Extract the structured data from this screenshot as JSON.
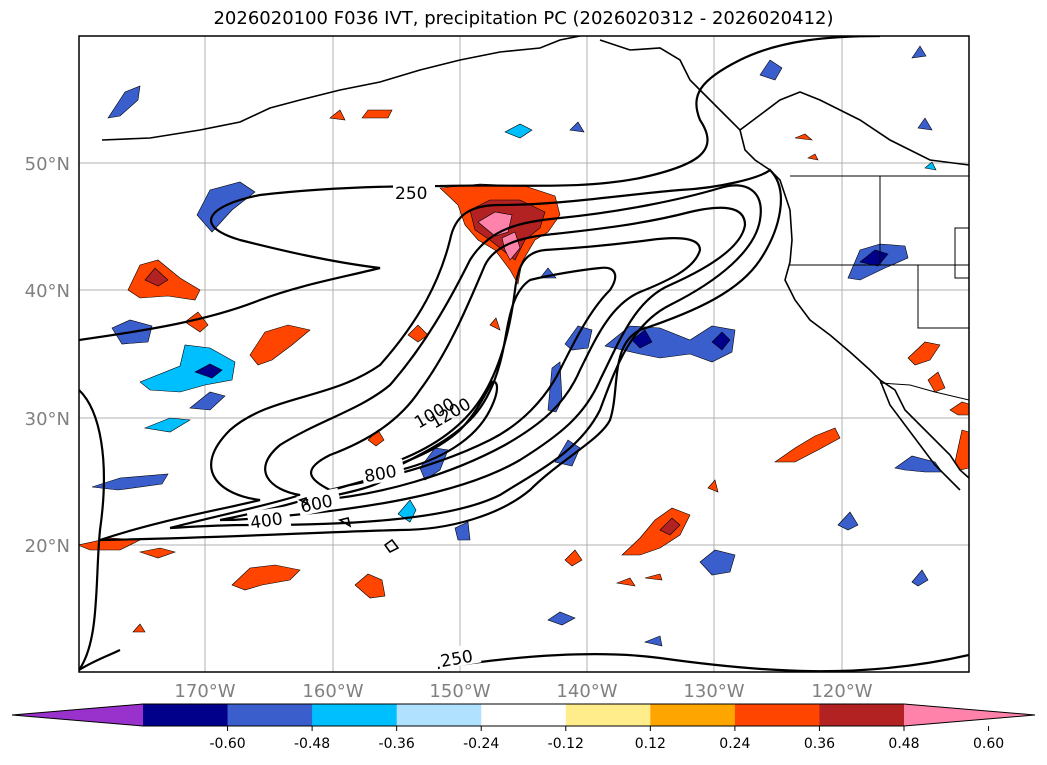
{
  "title": "2026020100 F036 IVT, precipitation PC (2026020312 - 2026020412)",
  "axes": {
    "lon_labels": [
      "170°W",
      "160°W",
      "150°W",
      "140°W",
      "130°W",
      "120°W"
    ],
    "lat_labels": [
      "50°N",
      "40°N",
      "30°N",
      "20°N"
    ],
    "lon_range": [
      -180,
      -110
    ],
    "lat_range": [
      10,
      60
    ],
    "grid": true
  },
  "ivt_contour_labels": [
    "250",
    "250",
    "400",
    "600",
    "800",
    "1000",
    "1200"
  ],
  "colorbar": {
    "ticks": [
      "-0.60",
      "-0.48",
      "-0.36",
      "-0.24",
      "-0.12",
      "0.12",
      "0.24",
      "0.36",
      "0.48",
      "0.60"
    ],
    "colors": [
      "#9932cc",
      "#00008b",
      "#3a5fcd",
      "#00bfff",
      "#b0e2ff",
      "#ffffff",
      "#ffec8b",
      "#ffa500",
      "#ff4500",
      "#b22222",
      "#ff82ab"
    ],
    "extend": "both"
  },
  "colors": {
    "neg_light": "#b0e2ff",
    "neg_mid": "#00bfff",
    "neg_strong": "#3a5fcd",
    "neg_max": "#00008b",
    "pos_light": "#ffec8b",
    "pos_mid": "#ffa500",
    "pos_strong": "#ff4500",
    "pos_max": "#b22222",
    "pos_top": "#ff82ab"
  }
}
